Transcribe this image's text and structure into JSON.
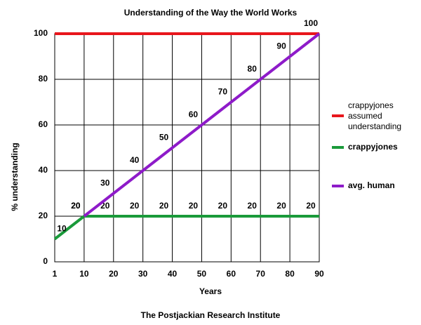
{
  "chart_data": {
    "type": "line",
    "title": "Understanding of the Way the World Works",
    "xlabel": "Years",
    "ylabel": "% understanding",
    "caption": "The Postjackian Research Institute",
    "categories": [
      "1",
      "10",
      "20",
      "30",
      "40",
      "50",
      "60",
      "70",
      "80",
      "90"
    ],
    "series": [
      {
        "name": "crappyjones assumed understanding",
        "color": "#e8161c",
        "values": [
          100,
          100,
          100,
          100,
          100,
          100,
          100,
          100,
          100,
          100
        ],
        "data_labels": false
      },
      {
        "name": "crappyjones",
        "color": "#1a9a3a",
        "values": [
          10,
          20,
          20,
          20,
          20,
          20,
          20,
          20,
          20,
          20
        ],
        "data_labels": true
      },
      {
        "name": "avg. human",
        "color": "#8e1bc9",
        "values": [
          null,
          20,
          30,
          40,
          50,
          60,
          70,
          80,
          90,
          100
        ],
        "data_labels": true
      }
    ],
    "ylim": [
      0,
      100
    ],
    "yticks": [
      0,
      20,
      40,
      60,
      80,
      100
    ],
    "grid": true,
    "legend": "right"
  }
}
